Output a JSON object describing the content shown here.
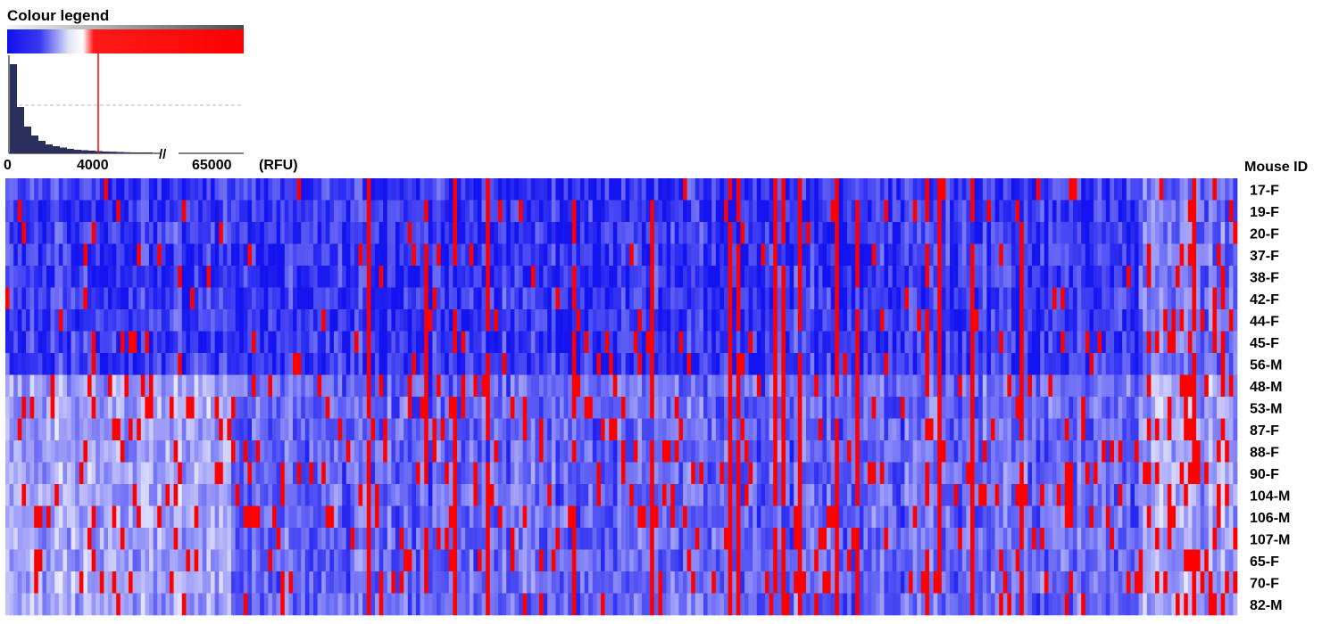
{
  "legend": {
    "title": "Colour legend",
    "ticks": [
      "0",
      "4000",
      "65000"
    ],
    "unit": "(RFU)",
    "break_mark": "//",
    "scale_colors": {
      "low": "#0000ff",
      "mid": "#ffffff",
      "high": "#ff0000",
      "threshold_line": "#ff0000",
      "histogram_bar": "#2b2f5c"
    }
  },
  "chart_data": {
    "type": "heatmap",
    "title": "Colour legend",
    "row_axis_label": "Mouse ID",
    "rows": [
      "17-F",
      "19-F",
      "20-F",
      "37-F",
      "38-F",
      "42-F",
      "44-F",
      "45-F",
      "56-M",
      "48-M",
      "53-M",
      "87-F",
      "88-F",
      "90-F",
      "104-M",
      "106-M",
      "107-M",
      "65-F",
      "70-F",
      "82-M"
    ],
    "value_unit": "RFU",
    "scale_range": [
      0,
      65000
    ],
    "saturation_threshold": 4000,
    "n_columns_approx": 300,
    "colormap": "blue (low) → white → red (≥4000 RFU)",
    "histogram": {
      "x_range": [
        0,
        65000
      ],
      "bins_relative_height": [
        1.0,
        0.52,
        0.3,
        0.2,
        0.14,
        0.1,
        0.08,
        0.065,
        0.05,
        0.04,
        0.035,
        0.03,
        0.025,
        0.02,
        0.018,
        0.015,
        0.012,
        0.01,
        0.008,
        0.006
      ]
    }
  }
}
